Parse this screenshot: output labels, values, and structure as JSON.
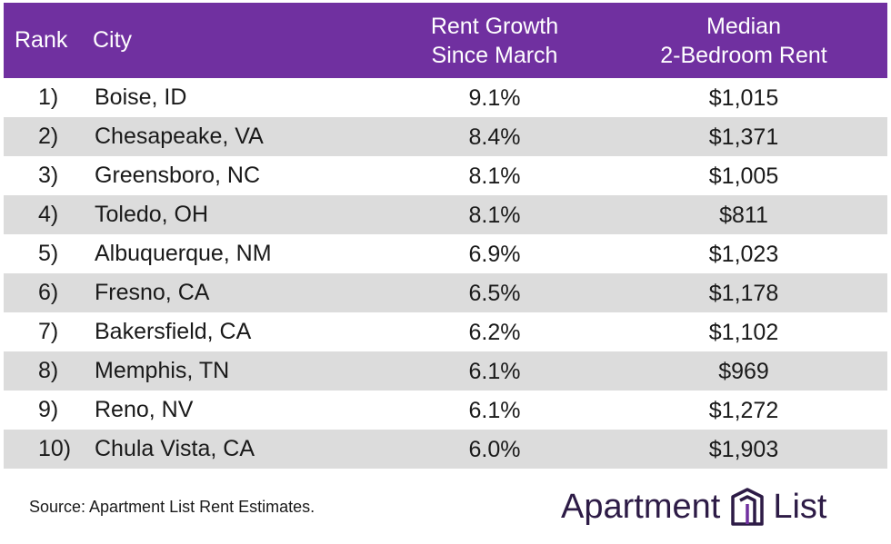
{
  "chart_data": {
    "type": "table",
    "columns": [
      "Rank",
      "City",
      "Rent Growth Since March",
      "Median 2-Bedroom Rent"
    ],
    "header": {
      "rank": "Rank",
      "city": "City",
      "growth_line1": "Rent Growth",
      "growth_line2": "Since March",
      "rent_line1": "Median",
      "rent_line2": "2-Bedroom Rent"
    },
    "rows": [
      {
        "rank": "1)",
        "city": "Boise, ID",
        "growth": "9.1%",
        "rent": "$1,015"
      },
      {
        "rank": "2)",
        "city": "Chesapeake, VA",
        "growth": "8.4%",
        "rent": "$1,371"
      },
      {
        "rank": "3)",
        "city": "Greensboro, NC",
        "growth": "8.1%",
        "rent": "$1,005"
      },
      {
        "rank": "4)",
        "city": "Toledo, OH",
        "growth": "8.1%",
        "rent": "$811"
      },
      {
        "rank": "5)",
        "city": "Albuquerque, NM",
        "growth": "6.9%",
        "rent": "$1,023"
      },
      {
        "rank": "6)",
        "city": "Fresno, CA",
        "growth": "6.5%",
        "rent": "$1,178"
      },
      {
        "rank": "7)",
        "city": "Bakersfield, CA",
        "growth": "6.2%",
        "rent": "$1,102"
      },
      {
        "rank": "8)",
        "city": "Memphis, TN",
        "growth": "6.1%",
        "rent": "$969"
      },
      {
        "rank": "9)",
        "city": "Reno, NV",
        "growth": "6.1%",
        "rent": "$1,272"
      },
      {
        "rank": "10)",
        "city": "Chula Vista, CA",
        "growth": "6.0%",
        "rent": "$1,903"
      }
    ],
    "source": "Source: Apartment List Rent Estimates."
  },
  "brand": {
    "logo_word1": "Apartment",
    "logo_word2": "List",
    "logo_icon": "apartment-list-building-icon",
    "header_color": "#7030a0",
    "shade_color": "#dcdcdc"
  }
}
